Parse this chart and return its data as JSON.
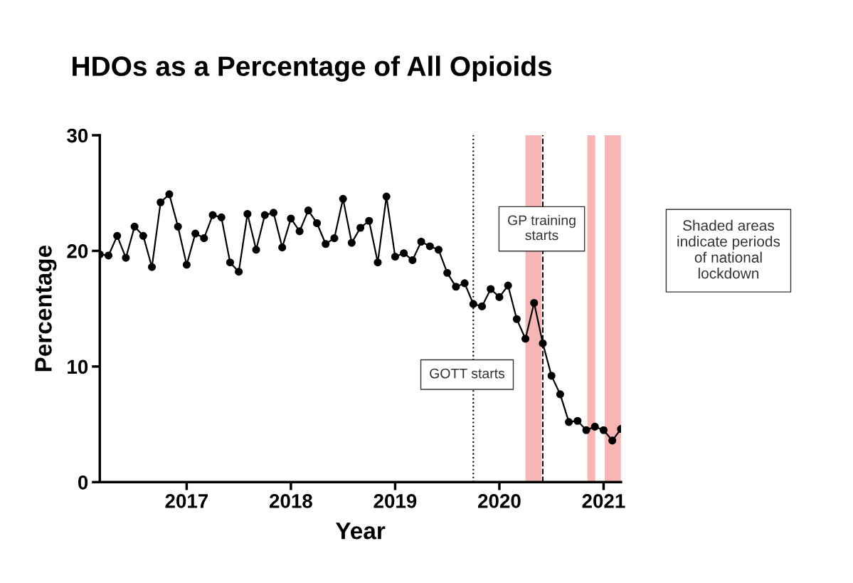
{
  "chart_data": {
    "type": "line",
    "title": "HDOs as a Percentage of All Opioids",
    "xlabel": "Year",
    "ylabel": "Percentage",
    "x": [
      "2016-03",
      "2016-04",
      "2016-05",
      "2016-06",
      "2016-07",
      "2016-08",
      "2016-09",
      "2016-10",
      "2016-11",
      "2016-12",
      "2017-01",
      "2017-02",
      "2017-03",
      "2017-04",
      "2017-05",
      "2017-06",
      "2017-07",
      "2017-08",
      "2017-09",
      "2017-10",
      "2017-11",
      "2017-12",
      "2018-01",
      "2018-02",
      "2018-03",
      "2018-04",
      "2018-05",
      "2018-06",
      "2018-07",
      "2018-08",
      "2018-09",
      "2018-10",
      "2018-11",
      "2018-12",
      "2019-01",
      "2019-02",
      "2019-03",
      "2019-04",
      "2019-05",
      "2019-06",
      "2019-07",
      "2019-08",
      "2019-09",
      "2019-10",
      "2019-11",
      "2019-12",
      "2020-01",
      "2020-02",
      "2020-03",
      "2020-04",
      "2020-05",
      "2020-06",
      "2020-07",
      "2020-08",
      "2020-09",
      "2020-10",
      "2020-11",
      "2020-12",
      "2021-01",
      "2021-02",
      "2021-03"
    ],
    "series": [
      {
        "color": "#000000",
        "values": [
          19.7,
          19.6,
          21.3,
          19.4,
          22.1,
          21.3,
          18.6,
          24.2,
          24.9,
          22.1,
          18.8,
          21.5,
          21.1,
          23.1,
          22.9,
          19.0,
          18.2,
          23.2,
          20.1,
          23.1,
          23.3,
          20.3,
          22.8,
          21.7,
          23.5,
          22.4,
          20.6,
          21.1,
          24.5,
          20.7,
          22.0,
          22.6,
          19.0,
          24.7,
          19.5,
          19.8,
          19.2,
          20.8,
          20.4,
          20.1,
          18.1,
          16.9,
          17.2,
          15.4,
          15.2,
          16.7,
          16.0,
          17.0,
          14.1,
          12.4,
          15.5,
          12.0,
          9.2,
          7.6,
          5.2,
          5.3,
          4.5,
          4.8,
          4.5,
          3.6,
          4.6
        ]
      }
    ],
    "xlim": [
      "2016-03",
      "2021-03"
    ],
    "xticks": [
      "2017",
      "2018",
      "2019",
      "2020",
      "2021"
    ],
    "ylim": [
      0,
      30
    ],
    "yticks": [
      0,
      10,
      20,
      30
    ],
    "marker": "circle",
    "line_style": "solid",
    "grid": false,
    "legend": false,
    "ref_lines": [
      {
        "axis": "x",
        "value": "2019-10",
        "label": "GOTT starts",
        "color": "#000000",
        "line_style": "dotted"
      },
      {
        "axis": "x",
        "value": "2020-06",
        "label": "GP training starts",
        "color": "#000000",
        "line_style": "dashed"
      }
    ],
    "bands": [
      {
        "axis": "x",
        "from": "2020-04",
        "to": "2020-05-27",
        "color": "#f8b5b5"
      },
      {
        "axis": "x",
        "from": "2020-11-05",
        "to": "2020-12-02",
        "color": "#f8b5b5"
      },
      {
        "axis": "x",
        "from": "2021-01-05",
        "to": "2021-03-01",
        "color": "#f8b5b5"
      }
    ],
    "annotations": [
      "Shaded areas\nindicate periods\nof national\nlockdown"
    ]
  }
}
